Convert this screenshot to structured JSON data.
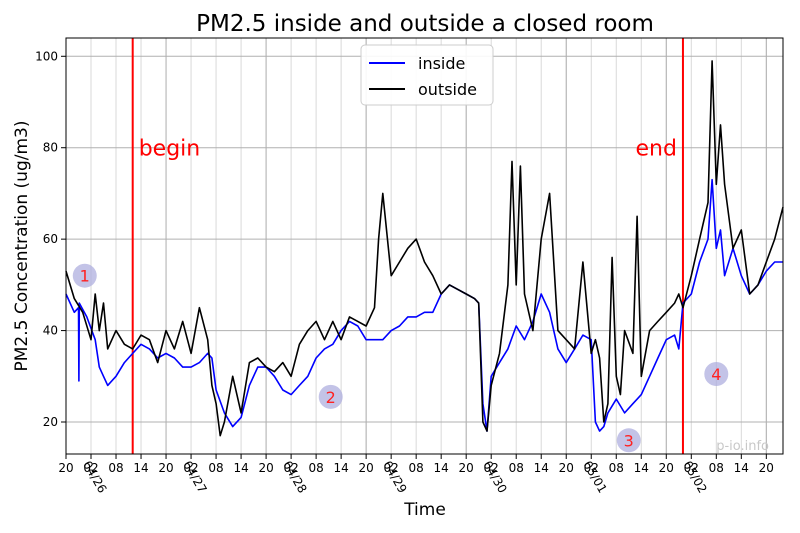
{
  "chart_data": {
    "type": "line",
    "title": "PM2.5 inside and outside a closed room",
    "xlabel": "Time",
    "ylabel": "PM2.5 Concentration (ug/m3)",
    "x_unit": "hours since 04/25 20:00",
    "xlim": [
      0,
      172
    ],
    "ylim": [
      13,
      104
    ],
    "y_ticks": [
      20,
      40,
      60,
      80,
      100
    ],
    "grid": true,
    "legend_position": "top-center",
    "x_ticks": [
      {
        "x": 0,
        "label": "20"
      },
      {
        "x": 6,
        "label": "02"
      },
      {
        "x": 12,
        "label": "08"
      },
      {
        "x": 18,
        "label": "14"
      },
      {
        "x": 24,
        "label": "20"
      },
      {
        "x": 30,
        "label": "02"
      },
      {
        "x": 36,
        "label": "08"
      },
      {
        "x": 42,
        "label": "14"
      },
      {
        "x": 48,
        "label": "20"
      },
      {
        "x": 54,
        "label": "02"
      },
      {
        "x": 60,
        "label": "08"
      },
      {
        "x": 66,
        "label": "14"
      },
      {
        "x": 72,
        "label": "20"
      },
      {
        "x": 78,
        "label": "02"
      },
      {
        "x": 84,
        "label": "08"
      },
      {
        "x": 90,
        "label": "14"
      },
      {
        "x": 96,
        "label": "20"
      },
      {
        "x": 102,
        "label": "02"
      },
      {
        "x": 108,
        "label": "08"
      },
      {
        "x": 114,
        "label": "14"
      },
      {
        "x": 120,
        "label": "20"
      },
      {
        "x": 126,
        "label": "02"
      },
      {
        "x": 132,
        "label": "08"
      },
      {
        "x": 138,
        "label": "14"
      },
      {
        "x": 144,
        "label": "20"
      },
      {
        "x": 150,
        "label": "02"
      },
      {
        "x": 156,
        "label": "08"
      },
      {
        "x": 162,
        "label": "14"
      },
      {
        "x": 168,
        "label": "20"
      }
    ],
    "date_ticks": [
      {
        "x": 4,
        "label": "04/26"
      },
      {
        "x": 28,
        "label": "04/27"
      },
      {
        "x": 52,
        "label": "04/28"
      },
      {
        "x": 76,
        "label": "04/29"
      },
      {
        "x": 100,
        "label": "04/30"
      },
      {
        "x": 124,
        "label": "05/01"
      },
      {
        "x": 148,
        "label": "05/02"
      }
    ],
    "series": [
      {
        "name": "inside",
        "color": "#0000ff",
        "x": [
          0,
          2,
          3,
          3.1,
          3.2,
          5,
          7,
          8,
          9,
          10,
          12,
          14,
          16,
          18,
          20,
          22,
          24,
          26,
          28,
          30,
          32,
          34,
          35,
          36,
          38,
          40,
          42,
          44,
          46,
          48,
          50,
          52,
          54,
          56,
          58,
          60,
          62,
          64,
          66,
          68,
          70,
          72,
          74,
          76,
          78,
          80,
          82,
          84,
          86,
          88,
          90,
          92,
          94,
          96,
          98,
          99,
          100,
          101,
          102,
          104,
          106,
          108,
          110,
          112,
          114,
          116,
          118,
          120,
          122,
          124,
          126,
          127,
          128,
          129,
          130,
          132,
          134,
          136,
          138,
          140,
          142,
          144,
          146,
          147,
          148,
          150,
          152,
          154,
          155,
          156,
          157,
          158,
          160,
          162,
          164,
          166,
          168,
          170,
          172
        ],
        "y": [
          48,
          44,
          45,
          29,
          46,
          43,
          38,
          32,
          30,
          28,
          30,
          33,
          35,
          37,
          36,
          34,
          35,
          34,
          32,
          32,
          33,
          35,
          34,
          27,
          22,
          19,
          21,
          28,
          32,
          32,
          30,
          27,
          26,
          28,
          30,
          34,
          36,
          37,
          40,
          42,
          41,
          38,
          38,
          38,
          40,
          41,
          43,
          43,
          44,
          44,
          48,
          50,
          49,
          48,
          47,
          46,
          24,
          18,
          30,
          33,
          36,
          41,
          38,
          42,
          48,
          44,
          36,
          33,
          36,
          39,
          38,
          20,
          18,
          19,
          22,
          25,
          22,
          24,
          26,
          30,
          34,
          38,
          39,
          36,
          46,
          48,
          55,
          60,
          73,
          58,
          62,
          52,
          58,
          52,
          48,
          50,
          53,
          55,
          55
        ]
      },
      {
        "name": "outside",
        "color": "#000000",
        "x": [
          0,
          2,
          4,
          6,
          7,
          8,
          9,
          10,
          12,
          14,
          16,
          18,
          20,
          22,
          24,
          26,
          28,
          30,
          32,
          34,
          35,
          36,
          37,
          38,
          40,
          42,
          44,
          46,
          48,
          50,
          52,
          54,
          56,
          58,
          60,
          62,
          64,
          66,
          68,
          70,
          72,
          74,
          75,
          76,
          78,
          80,
          82,
          84,
          86,
          88,
          90,
          92,
          94,
          96,
          98,
          99,
          100,
          101,
          102,
          104,
          106,
          107,
          108,
          109,
          110,
          112,
          114,
          116,
          118,
          120,
          122,
          124,
          126,
          127,
          128,
          129,
          130,
          131,
          132,
          133,
          134,
          136,
          137,
          138,
          140,
          142,
          144,
          146,
          147,
          148,
          150,
          152,
          154,
          155,
          156,
          157,
          158,
          160,
          162,
          164,
          166,
          168,
          170,
          172
        ],
        "y": [
          53,
          47,
          44,
          38,
          48,
          40,
          46,
          36,
          40,
          37,
          36,
          39,
          38,
          33,
          40,
          36,
          42,
          35,
          45,
          38,
          28,
          24,
          17,
          20,
          30,
          22,
          33,
          34,
          32,
          31,
          33,
          30,
          37,
          40,
          42,
          38,
          42,
          38,
          43,
          42,
          41,
          45,
          60,
          70,
          52,
          55,
          58,
          60,
          55,
          52,
          48,
          50,
          49,
          48,
          47,
          46,
          20,
          18,
          28,
          35,
          50,
          77,
          50,
          76,
          48,
          40,
          60,
          70,
          40,
          38,
          36,
          55,
          35,
          38,
          34,
          20,
          24,
          56,
          30,
          26,
          40,
          35,
          65,
          30,
          40,
          42,
          44,
          46,
          48,
          45,
          52,
          60,
          68,
          99,
          72,
          85,
          72,
          58,
          62,
          48,
          50,
          55,
          60,
          67
        ]
      }
    ],
    "event_lines": [
      {
        "x": 16,
        "label": "begin",
        "color": "#ff0000"
      },
      {
        "x": 148,
        "label": "end",
        "color": "#ff0000"
      }
    ],
    "markers": [
      {
        "label": "1",
        "x": 4.5,
        "y": 52
      },
      {
        "label": "2",
        "x": 63.5,
        "y": 25.5
      },
      {
        "label": "3",
        "x": 135,
        "y": 16
      },
      {
        "label": "4",
        "x": 156,
        "y": 30.5
      }
    ],
    "watermark": "p-io.info"
  }
}
